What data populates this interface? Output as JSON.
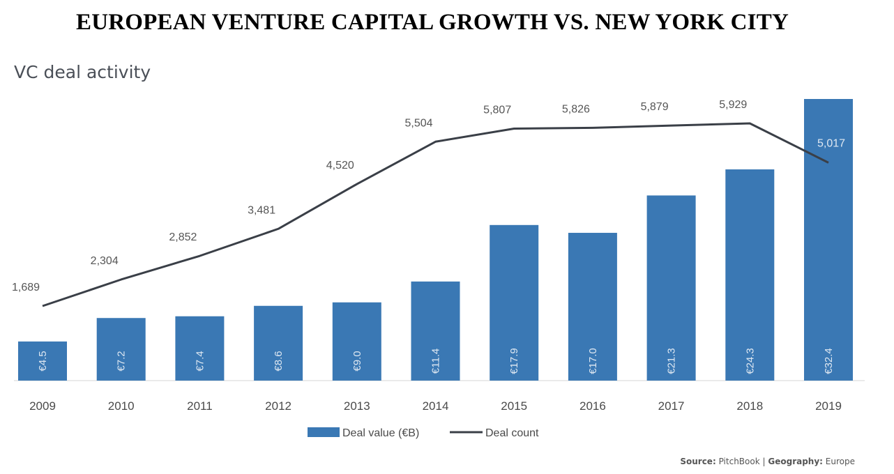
{
  "headline": "EUROPEAN VENTURE CAPITAL GROWTH VS. NEW YORK CITY",
  "source": {
    "source_label": "Source:",
    "source_value": "PitchBook",
    "separator": "|",
    "geo_label": "Geography:",
    "geo_value": "Europe"
  },
  "colors": {
    "bar": "#3a78b4",
    "line": "#3a3f47"
  },
  "chart_data": {
    "type": "bar",
    "title": "VC deal activity",
    "categories": [
      "2009",
      "2010",
      "2011",
      "2012",
      "2013",
      "2014",
      "2015",
      "2016",
      "2017",
      "2018",
      "2019"
    ],
    "series": [
      {
        "name": "Deal value (€B)",
        "type": "bar",
        "values": [
          4.5,
          7.2,
          7.4,
          8.6,
          9.0,
          11.4,
          17.9,
          17.0,
          21.3,
          24.3,
          32.4
        ],
        "labels": [
          "€4.5",
          "€7.2",
          "€7.4",
          "€8.6",
          "€9.0",
          "€11.4",
          "€17.9",
          "€17.0",
          "€21.3",
          "€24.3",
          "€32.4"
        ]
      },
      {
        "name": "Deal count",
        "type": "line",
        "values": [
          1689,
          2304,
          2852,
          3481,
          4520,
          5504,
          5807,
          5826,
          5879,
          5929,
          5017
        ],
        "labels": [
          "1,689",
          "2,304",
          "2,852",
          "3,481",
          "4,520",
          "5,504",
          "5,807",
          "5,826",
          "5,879",
          "5,929",
          "5,017"
        ]
      }
    ],
    "legend": "bottom-center",
    "grid": false
  }
}
